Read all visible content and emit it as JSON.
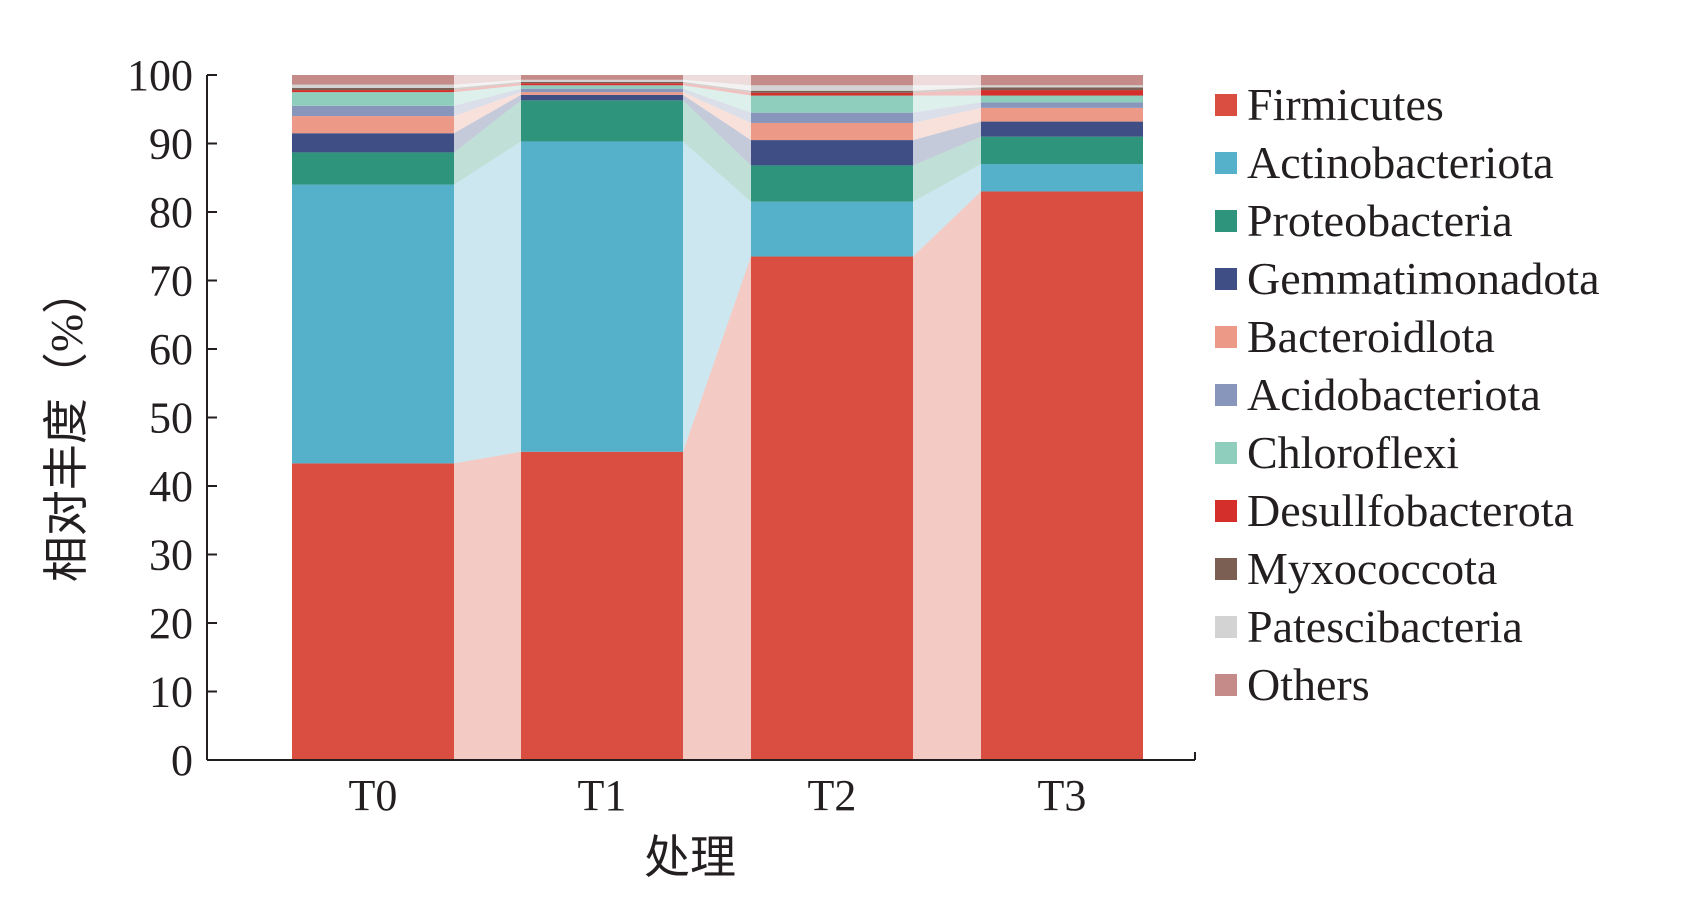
{
  "chart_data": {
    "type": "bar",
    "stacked": true,
    "flow_connectors": true,
    "xlabel": "处理",
    "ylabel": "相对丰度（%）",
    "ylim": [
      0,
      100
    ],
    "yticks": [
      0,
      10,
      20,
      30,
      40,
      50,
      60,
      70,
      80,
      90,
      100
    ],
    "grid": false,
    "legend_position": "right",
    "categories": [
      "T0",
      "T1",
      "T2",
      "T3"
    ],
    "series": [
      {
        "name": "Firmicutes",
        "color": "#d94e40",
        "values": [
          43.3,
          45.0,
          73.5,
          83.0
        ]
      },
      {
        "name": "Actinobacteriota",
        "color": "#55b1ca",
        "values": [
          40.7,
          45.3,
          8.0,
          4.0
        ]
      },
      {
        "name": "Proteobacteria",
        "color": "#2e957c",
        "values": [
          4.7,
          6.0,
          5.3,
          4.0
        ]
      },
      {
        "name": "Gemmatimonadota",
        "color": "#3f4f86",
        "values": [
          2.8,
          0.8,
          3.7,
          2.2
        ]
      },
      {
        "name": "Bacteroidlota",
        "color": "#ec9a87",
        "values": [
          2.5,
          0.4,
          2.5,
          2.0
        ]
      },
      {
        "name": "Acidobacteriota",
        "color": "#8996bb",
        "values": [
          1.5,
          0.5,
          1.5,
          0.8
        ]
      },
      {
        "name": "Chloroflexi",
        "color": "#8fcdbc",
        "values": [
          2.0,
          0.5,
          2.5,
          1.0
        ]
      },
      {
        "name": "Desullfobacterota",
        "color": "#d42f2b",
        "values": [
          0.3,
          0.3,
          0.4,
          0.8
        ]
      },
      {
        "name": "Myxococcota",
        "color": "#7a5f52",
        "values": [
          0.3,
          0.2,
          0.3,
          0.4
        ]
      },
      {
        "name": "Patescibacteria",
        "color": "#d3d3d3",
        "values": [
          0.5,
          0.3,
          0.8,
          0.3
        ]
      },
      {
        "name": "Others",
        "color": "#c48b88",
        "values": [
          1.4,
          0.7,
          1.5,
          1.5
        ]
      }
    ]
  }
}
